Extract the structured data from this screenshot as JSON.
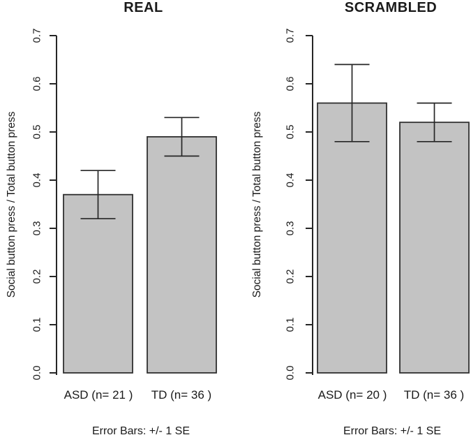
{
  "colors": {
    "background": "#ffffff",
    "text": "#1a1a1a",
    "axis": "#262626",
    "bar_fill": "#c3c3c3",
    "bar_border": "#303030",
    "error_bar": "#262626"
  },
  "chart_data": [
    {
      "type": "bar",
      "title": "REAL",
      "xlabel": "",
      "ylabel": "Social button press / Total button press",
      "ylim": [
        0,
        0.7
      ],
      "yticks": [
        0.0,
        0.1,
        0.2,
        0.3,
        0.4,
        0.5,
        0.6,
        0.7
      ],
      "ytick_labels": [
        "0.0",
        "0.1",
        "0.2",
        "0.3",
        "0.4",
        "0.5",
        "0.6",
        "0.7"
      ],
      "categories": [
        "ASD (n= 21 )",
        "TD (n= 36 )"
      ],
      "values": [
        0.37,
        0.49
      ],
      "errors_se": [
        0.05,
        0.04
      ],
      "error_note": "Error Bars: +/- 1 SE",
      "grid": false,
      "legend": "none"
    },
    {
      "type": "bar",
      "title": "SCRAMBLED",
      "xlabel": "",
      "ylabel": "Social button press / Total button press",
      "ylim": [
        0,
        0.7
      ],
      "yticks": [
        0.0,
        0.1,
        0.2,
        0.3,
        0.4,
        0.5,
        0.6,
        0.7
      ],
      "ytick_labels": [
        "0.0",
        "0.1",
        "0.2",
        "0.3",
        "0.4",
        "0.5",
        "0.6",
        "0.7"
      ],
      "categories": [
        "ASD (n= 20 )",
        "TD (n= 36 )"
      ],
      "values": [
        0.56,
        0.52
      ],
      "errors_se": [
        0.08,
        0.04
      ],
      "error_note": "Error Bars: +/- 1 SE",
      "grid": false,
      "legend": "none"
    }
  ]
}
